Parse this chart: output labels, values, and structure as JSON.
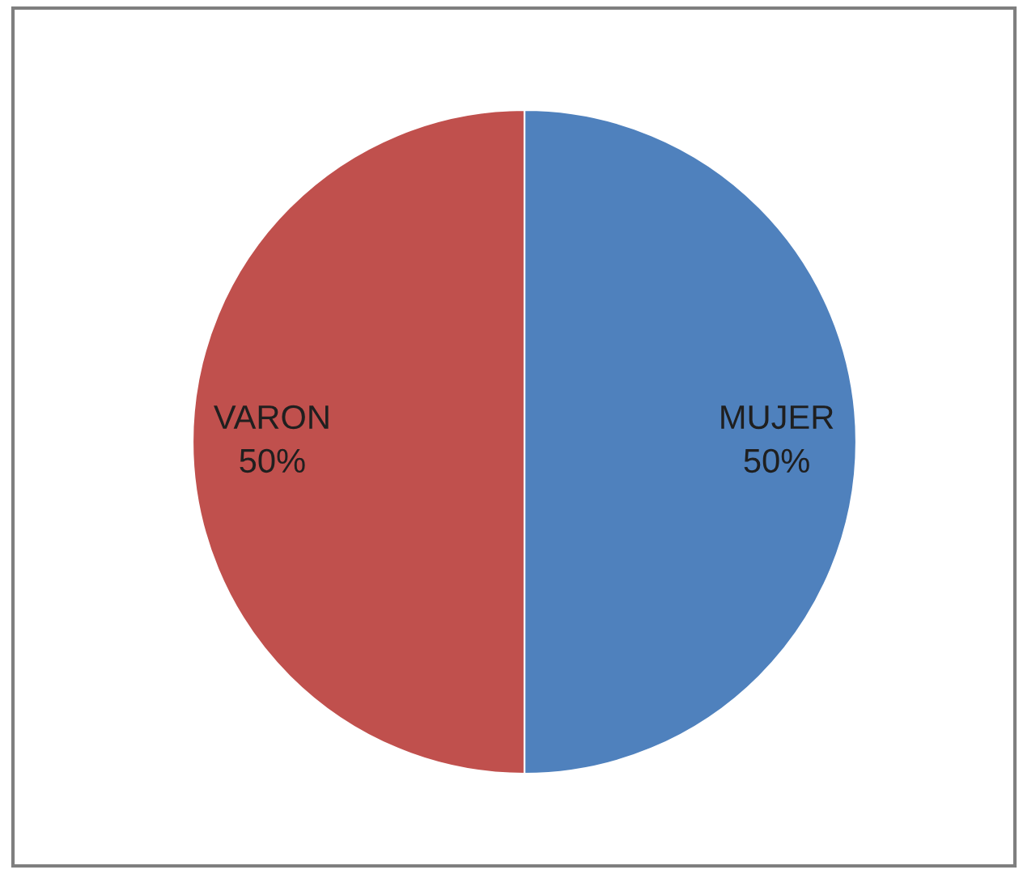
{
  "chart_data": {
    "type": "pie",
    "categories": [
      "MUJER",
      "VARON"
    ],
    "values": [
      50,
      50
    ],
    "colors": [
      "#4f81bd",
      "#c0504d"
    ],
    "value_labels": [
      "50%",
      "50%"
    ]
  }
}
